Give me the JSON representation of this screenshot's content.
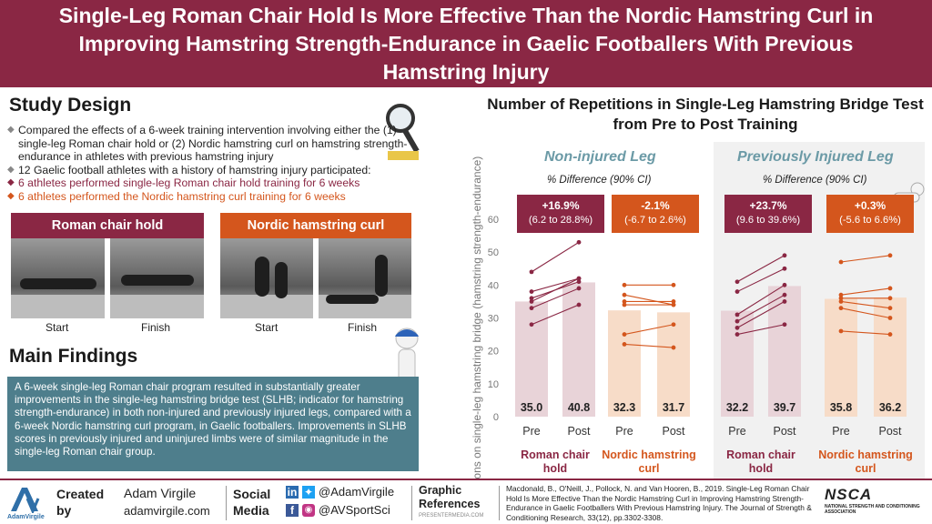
{
  "title": "Single-Leg Roman Chair Hold Is More Effective Than the Nordic Hamstring Curl in Improving Hamstring Strength-Endurance in Gaelic Footballers With Previous Hamstring Injury",
  "study_design": {
    "heading": "Study Design",
    "bullets": [
      {
        "text": "Compared the effects of a 6-week training intervention involving either the (1) single-leg Roman chair hold or (2) Nordic hamstring curl on hamstring strength-endurance in athletes with previous hamstring injury",
        "style": "gray"
      },
      {
        "text": "12 Gaelic football athletes with a history of hamstring injury participated:",
        "style": "gray"
      },
      {
        "text": "6 athletes performed single-leg Roman chair hold training for 6 weeks",
        "style": "red"
      },
      {
        "text": "6 athletes performed the Nordic hamstring curl training for 6 weeks",
        "style": "orange"
      }
    ],
    "exercise_1": {
      "label": "Roman chair hold",
      "start": "Start",
      "finish": "Finish"
    },
    "exercise_2": {
      "label": "Nordic hamstring curl",
      "start": "Start",
      "finish": "Finish"
    }
  },
  "main_findings": {
    "heading": "Main Findings",
    "text": "A 6-week single-leg Roman chair program resulted in substantially greater improvements in the single-leg hamstring bridge test (SLHB; indicator for hamstring strength-endurance) in both non-injured and previously injured legs, compared with a 6-week Nordic hamstring curl program, in Gaelic footballers. Improvements in SLHB scores in previously injured and uninjured limbs were of similar magnitude in the single-leg Roman chair group."
  },
  "watermark": "AVirgile",
  "colors": {
    "maroon": "#8a2744",
    "orange": "#d4561d",
    "teal": "#4e7e8c",
    "teal_title": "#6b9aa6",
    "maroon_bar": "#e8d3d8",
    "orange_bar": "#f7dcc8"
  },
  "chart_data": {
    "type": "bar",
    "title": "Number of Repetitions in Single-Leg Hamstring Bridge Test from Pre to Post Training",
    "ylabel": "Repetitions on single-leg hamstring bridge (hamstring strength-endurance)",
    "ylim": [
      0,
      60
    ],
    "yticks": [
      0,
      10,
      20,
      30,
      40,
      50,
      60
    ],
    "categories": [
      "Pre",
      "Post"
    ],
    "panels": [
      {
        "title": "Non-injured Leg",
        "subtitle": "% Difference (90% CI)",
        "groups": [
          {
            "name": "Roman chair hold",
            "diff": "+16.9%",
            "ci": "(6.2 to 28.8%)",
            "color": "#8a2744",
            "bar_color": "#e8d3d8",
            "values": [
              35.0,
              40.8
            ],
            "labels": [
              "35.0",
              "40.8"
            ],
            "individuals": [
              [
                28,
                34
              ],
              [
                33,
                39
              ],
              [
                35,
                42
              ],
              [
                36,
                41
              ],
              [
                38,
                42
              ],
              [
                44,
                53
              ]
            ]
          },
          {
            "name": "Nordic hamstring curl",
            "diff": "-2.1%",
            "ci": "(-6.7 to 2.6%)",
            "color": "#d4561d",
            "bar_color": "#f7dcc8",
            "values": [
              32.3,
              31.7
            ],
            "labels": [
              "32.3",
              "31.7"
            ],
            "individuals": [
              [
                22,
                21
              ],
              [
                25,
                28
              ],
              [
                34,
                34
              ],
              [
                35,
                35
              ],
              [
                37,
                34
              ],
              [
                40,
                40
              ]
            ]
          }
        ]
      },
      {
        "title": "Previously Injured Leg",
        "subtitle": "% Difference (90% CI)",
        "groups": [
          {
            "name": "Roman chair hold",
            "diff": "+23.7%",
            "ci": "(9.6 to 39.6%)",
            "color": "#8a2744",
            "bar_color": "#e8d3d8",
            "values": [
              32.2,
              39.7
            ],
            "labels": [
              "32.2",
              "39.7"
            ],
            "individuals": [
              [
                25,
                28
              ],
              [
                27,
                35
              ],
              [
                29,
                37
              ],
              [
                31,
                40
              ],
              [
                38,
                45
              ],
              [
                41,
                49
              ]
            ]
          },
          {
            "name": "Nordic hamstring curl",
            "diff": "+0.3%",
            "ci": "(-5.6 to 6.6%)",
            "color": "#d4561d",
            "bar_color": "#f7dcc8",
            "values": [
              35.8,
              36.2
            ],
            "labels": [
              "35.8",
              "36.2"
            ],
            "individuals": [
              [
                26,
                25
              ],
              [
                33,
                30
              ],
              [
                35,
                33
              ],
              [
                36,
                36
              ],
              [
                37,
                39
              ],
              [
                47,
                49
              ]
            ]
          }
        ]
      }
    ]
  },
  "footer": {
    "created_label": "Created by",
    "author": "Adam Virgile",
    "site": "adamvirgile.com",
    "logo_text": "AdamVirgile",
    "social_label": "Social Media",
    "social_1": "@AdamVirgile",
    "social_2": "@AVSportSci",
    "graphic_label": "Graphic References",
    "graphic_source": "PRESENTERMEDIA.COM",
    "citation": "Macdonald, B., O'Neill, J., Pollock, N. and Van Hooren, B., 2019. Single-Leg Roman Chair Hold Is More Effective Than the Nordic Hamstring Curl in Improving Hamstring Strength-Endurance in Gaelic Footballers With Previous Hamstring Injury. The Journal of Strength & Conditioning Research, 33(12), pp.3302-3308.",
    "nsca_title": "NSCA",
    "nsca_sub": "NATIONAL STRENGTH AND CONDITIONING ASSOCIATION"
  }
}
